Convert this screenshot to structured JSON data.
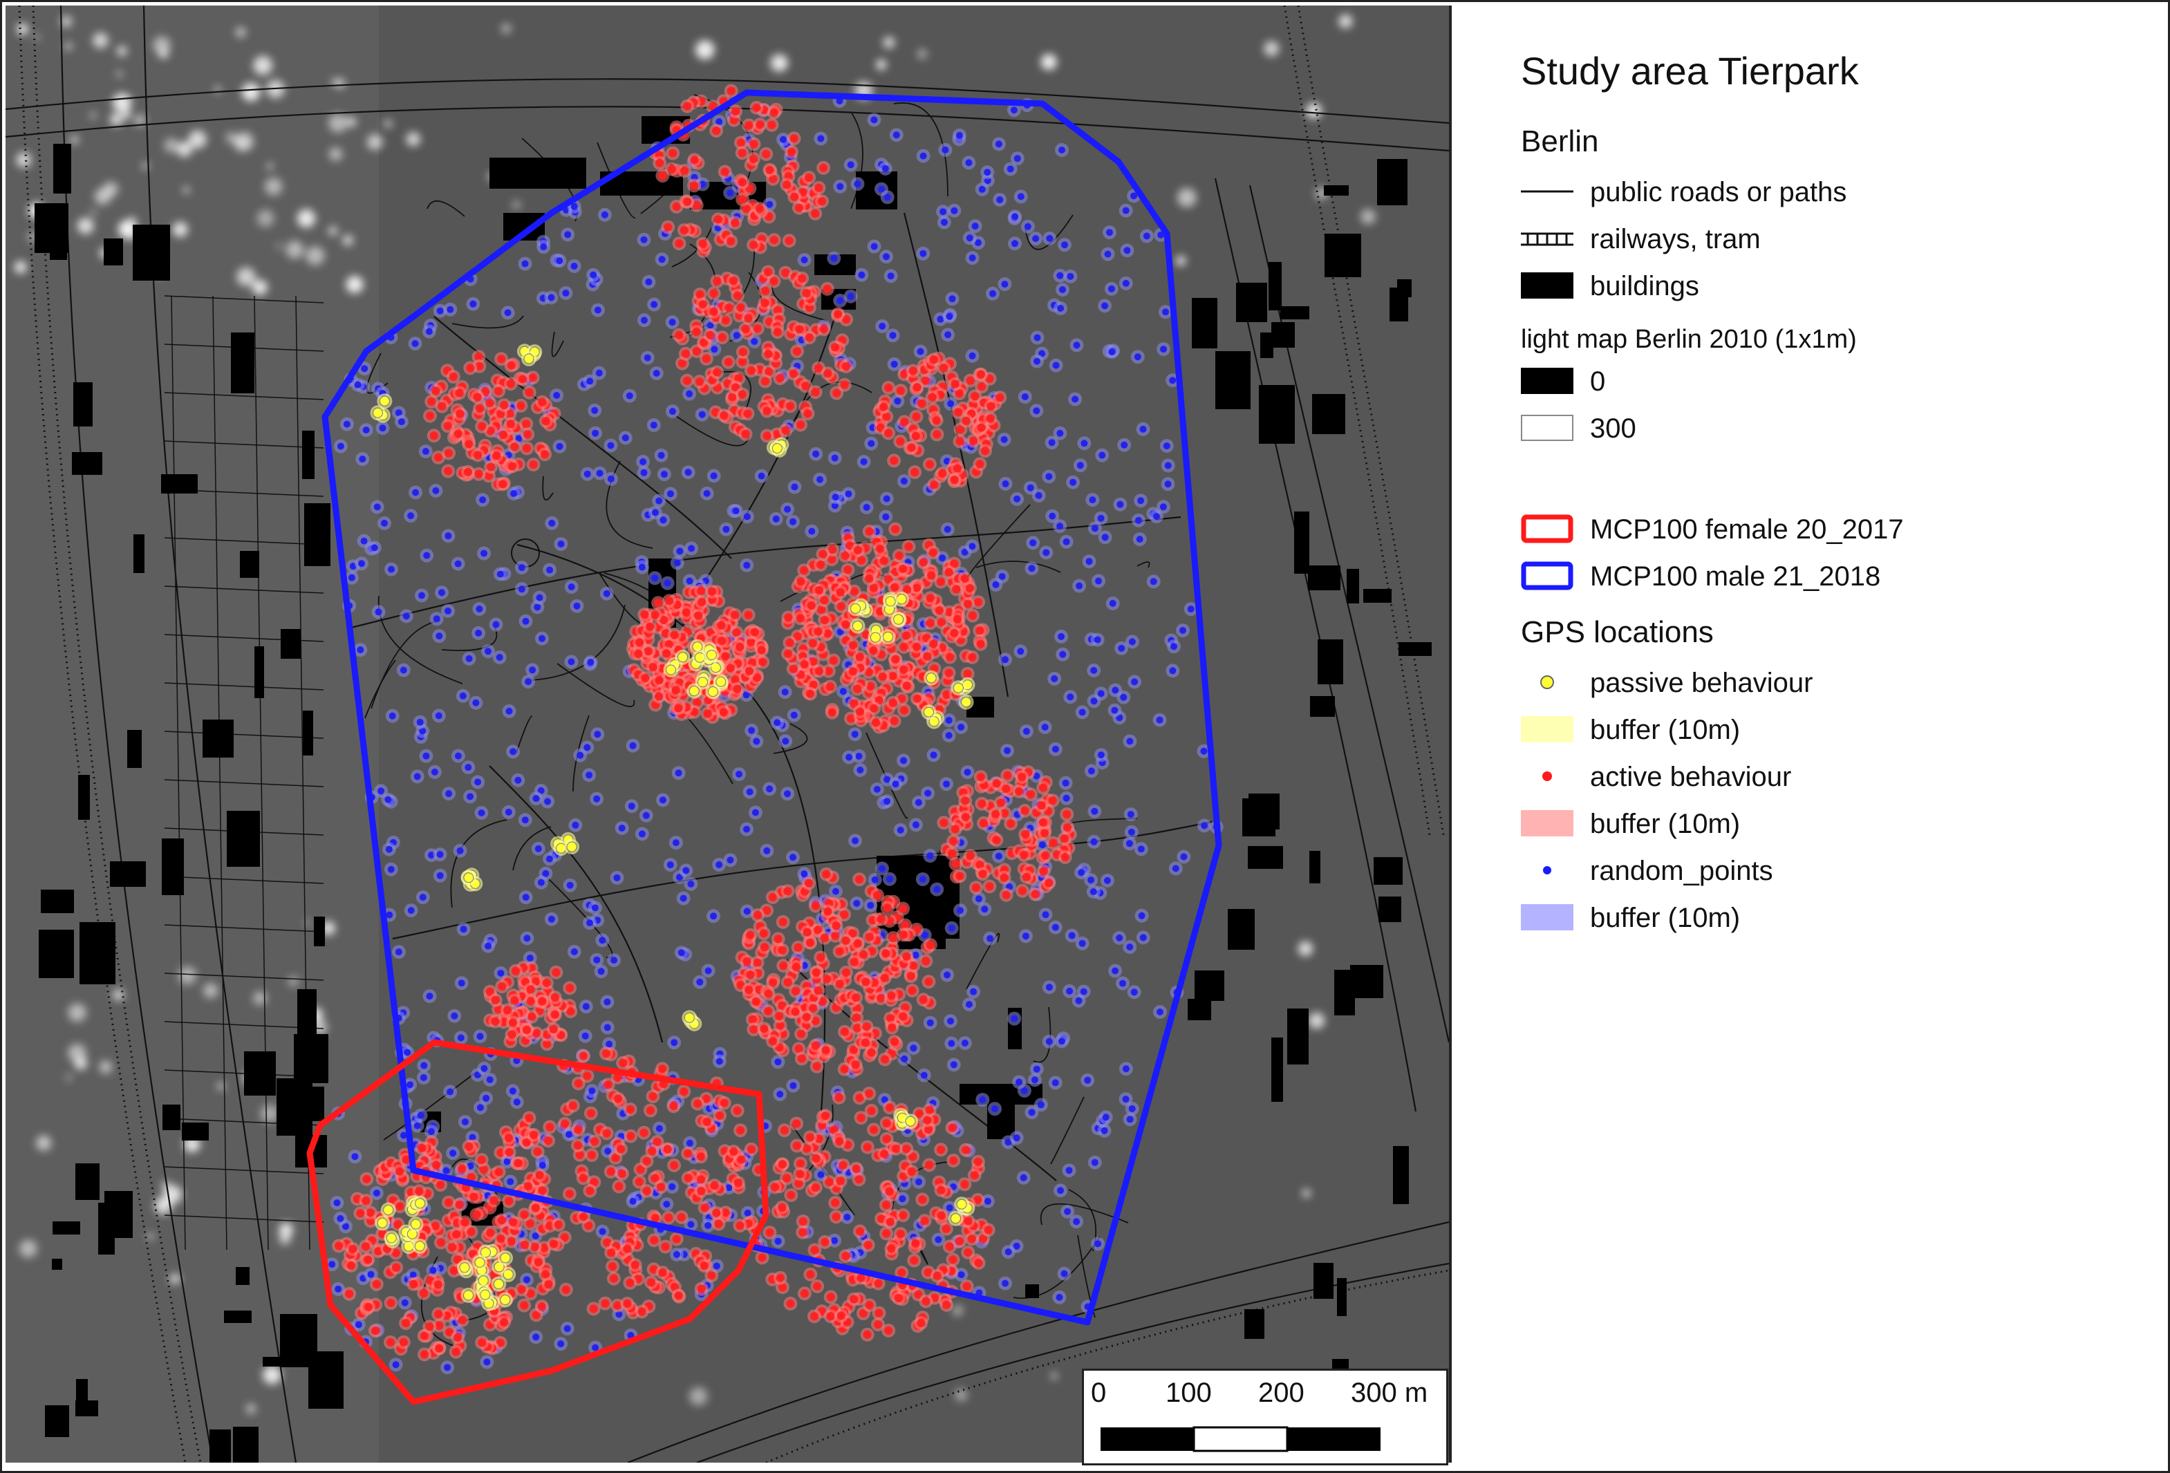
{
  "legend": {
    "title": "Study area Tierpark",
    "base_heading": "Berlin",
    "base_items": [
      {
        "symbol": "line-icon",
        "label": "public roads or paths"
      },
      {
        "symbol": "railway-icon",
        "label": "railways, tram"
      },
      {
        "symbol": "building-icon",
        "label": "buildings"
      }
    ],
    "lightmap_heading": "light map Berlin 2010 (1x1m)",
    "lightmap_items": [
      {
        "symbol": "black-swatch-icon",
        "color": "#000000",
        "label": "0"
      },
      {
        "symbol": "white-swatch-icon",
        "color": "#ffffff",
        "label": "300"
      }
    ],
    "mcp_items": [
      {
        "symbol": "red-outline-icon",
        "color": "#ff1a1a",
        "label": "MCP100 female 20_2017"
      },
      {
        "symbol": "blue-outline-icon",
        "color": "#1a1aff",
        "label": "MCP100 male 21_2018"
      }
    ],
    "gps_heading": "GPS locations",
    "gps_items": [
      {
        "symbol": "yellow-point-icon",
        "color": "#ffff33",
        "label": "passive behaviour"
      },
      {
        "symbol": "yellow-buffer-icon",
        "color": "#ffffb3",
        "label": "buffer (10m)"
      },
      {
        "symbol": "red-point-icon",
        "color": "#ff1a1a",
        "label": "active behaviour"
      },
      {
        "symbol": "red-buffer-icon",
        "color": "#ffb3b3",
        "label": "buffer (10m)"
      },
      {
        "symbol": "blue-point-icon",
        "color": "#1a1aff",
        "label": "random_points"
      },
      {
        "symbol": "blue-buffer-icon",
        "color": "#b3b3ff",
        "label": "buffer (10m)"
      }
    ]
  },
  "scale_bar": {
    "ticks": [
      "0",
      "100",
      "200",
      "300 m"
    ]
  },
  "colors": {
    "background": "#565656",
    "roads": "#111111",
    "buildings": "#000000",
    "light": "#f2f2f2",
    "mcp_male": "#1a1aff",
    "mcp_female": "#ff1a1a",
    "passive": "#ffff33",
    "active": "#ff2222",
    "random": "#2222ee"
  }
}
